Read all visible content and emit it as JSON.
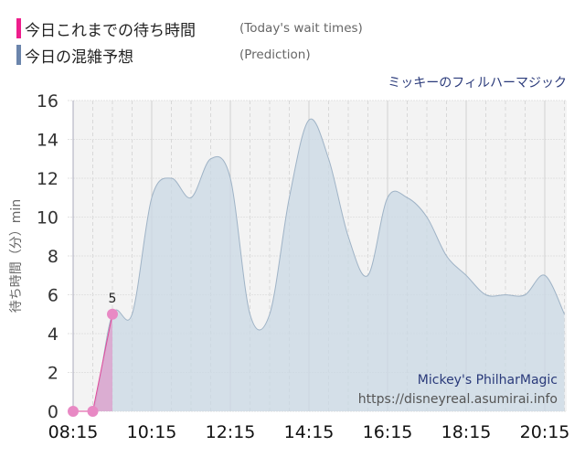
{
  "legend": [
    {
      "label": "今日これまでの待ち時間",
      "sub": "(Today's wait times)",
      "color": "#ee1e8c"
    },
    {
      "label": "今日の混雑予想",
      "sub": "(Prediction)",
      "color": "#6b85ac"
    }
  ],
  "attraction": "ミッキーのフィルハーマジック",
  "chart_data": {
    "type": "area",
    "ylabel": "待ち時間（分）min",
    "ylim": [
      0,
      16
    ],
    "yticks": [
      "0",
      "2",
      "4",
      "6",
      "8",
      "10",
      "12",
      "14",
      "16"
    ],
    "xticks": [
      "08:15",
      "10:15",
      "12:15",
      "14:15",
      "16:15",
      "18:15",
      "20:15"
    ],
    "grid": true,
    "series": [
      {
        "name": "今日の混雑予想",
        "color": "#c9d8e4",
        "x": [
          "08:15",
          "08:45",
          "09:15",
          "09:45",
          "10:15",
          "10:45",
          "11:15",
          "11:45",
          "12:15",
          "12:45",
          "13:15",
          "13:45",
          "14:15",
          "14:45",
          "15:15",
          "15:45",
          "16:15",
          "16:45",
          "17:15",
          "17:45",
          "18:15",
          "18:45",
          "19:15",
          "19:45",
          "20:15",
          "20:45"
        ],
        "values": [
          0,
          0,
          5,
          5,
          11,
          12,
          11,
          13,
          12,
          5,
          5,
          11,
          15,
          13,
          9,
          7,
          11,
          11,
          10,
          8,
          7,
          6,
          6,
          6,
          7,
          5
        ]
      },
      {
        "name": "今日これまでの待ち時間",
        "color": "#e68cc4",
        "x": [
          "08:15",
          "08:45",
          "09:15"
        ],
        "values": [
          0,
          0,
          5
        ],
        "data_labels": {
          "09:15": "5"
        }
      }
    ],
    "watermark": [
      "Mickey's PhilharMagic",
      "https://disneyreal.asumirai.info"
    ]
  }
}
